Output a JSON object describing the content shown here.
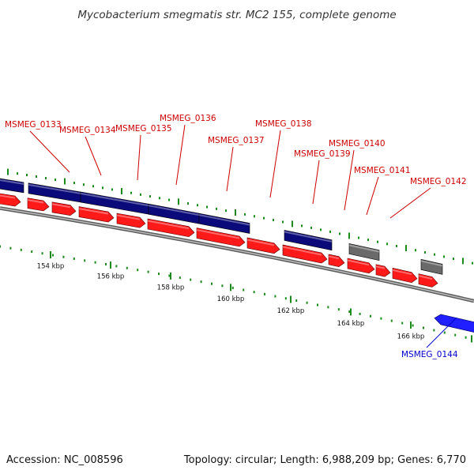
{
  "title": "Mycobacterium smegmatis str. MC2 155, complete genome",
  "footer": {
    "accession": "Accession: NC_008596",
    "summary": "Topology: circular; Length: 6,988,209 bp; Genes: 6,770"
  },
  "colors": {
    "forward_gene": "#ff1a1a",
    "cds_block": "#0a0a7a",
    "gray_block": "#6a6a6a",
    "reverse_gene": "#1f1fff",
    "tick": "#1c8a1c",
    "label_forward": "#cc0000",
    "label_reverse": "#0000cc",
    "backbone": "#808080"
  },
  "gene_labels": [
    {
      "name": "MSMEG_0133",
      "strand": "forward"
    },
    {
      "name": "MSMEG_0134",
      "strand": "forward"
    },
    {
      "name": "MSMEG_0135",
      "strand": "forward"
    },
    {
      "name": "MSMEG_0136",
      "strand": "forward"
    },
    {
      "name": "MSMEG_0137",
      "strand": "forward"
    },
    {
      "name": "MSMEG_0138",
      "strand": "forward"
    },
    {
      "name": "MSMEG_0139",
      "strand": "forward"
    },
    {
      "name": "MSMEG_0140",
      "strand": "forward"
    },
    {
      "name": "MSMEG_0141",
      "strand": "forward"
    },
    {
      "name": "MSMEG_0142",
      "strand": "forward"
    },
    {
      "name": "MSMEG_0144",
      "strand": "reverse"
    }
  ],
  "scale_ticks": [
    "154 kbp",
    "156 kbp",
    "158 kbp",
    "160 kbp",
    "162 kbp",
    "164 kbp",
    "166 kbp"
  ]
}
